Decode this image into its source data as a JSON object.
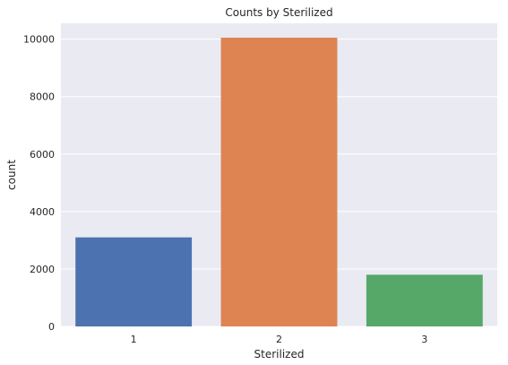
{
  "chart_data": {
    "type": "bar",
    "title": "Counts by Sterilized",
    "xlabel": "Sterilized",
    "ylabel": "count",
    "categories": [
      "1",
      "2",
      "3"
    ],
    "values": [
      3100,
      10050,
      1800
    ],
    "colors": [
      "#4c72b0",
      "#dd8452",
      "#55a868"
    ],
    "ylim": [
      0,
      10550
    ],
    "yticks": [
      0,
      2000,
      4000,
      6000,
      8000,
      10000
    ],
    "grid": true,
    "background": "#eaeaf2",
    "gridcolor": "#ffffff"
  }
}
